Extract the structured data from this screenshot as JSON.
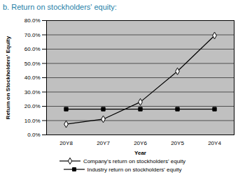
{
  "chart_data": {
    "type": "line",
    "title": "b. Return on stockholders' equity:",
    "x_label": "Year",
    "y_label": "Return on Stockholders' Equity",
    "categories": [
      "20Y8",
      "20Y7",
      "20Y6",
      "20Y5",
      "20Y4"
    ],
    "series": [
      {
        "name": "Company's return on stockholders' equity",
        "color": "#000000",
        "marker": "diamond",
        "values": [
          7.5,
          11,
          23,
          44.5,
          69.5
        ]
      },
      {
        "name": "Industry return on stockholders' equity",
        "color": "#000000",
        "marker": "square",
        "values": [
          18,
          18,
          18,
          18,
          18
        ]
      }
    ],
    "ylim": [
      0,
      80
    ],
    "yticks": [
      {
        "value": 0,
        "label": "0.0%"
      },
      {
        "value": 10,
        "label": "10.0%"
      },
      {
        "value": 20,
        "label": "20.0%"
      },
      {
        "value": 30,
        "label": "30.0%"
      },
      {
        "value": 40,
        "label": "40.0%"
      },
      {
        "value": 50,
        "label": "50.0%"
      },
      {
        "value": 60,
        "label": "60.0%"
      },
      {
        "value": 70,
        "label": "70.0%"
      },
      {
        "value": 80,
        "label": "80.0%"
      }
    ],
    "grid": true,
    "legend": "bottom"
  }
}
